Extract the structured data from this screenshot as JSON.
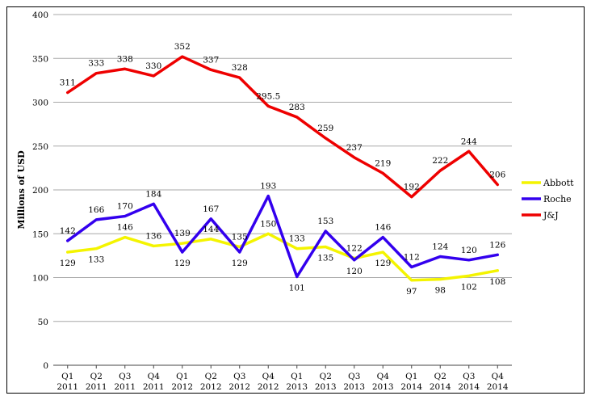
{
  "chart_data": {
    "type": "line",
    "title": "",
    "xlabel": "",
    "ylabel": "Millions of USD",
    "ylim": [
      0,
      400
    ],
    "yticks": [
      0,
      50,
      100,
      150,
      200,
      250,
      300,
      350,
      400
    ],
    "grid": true,
    "legend_position": "right",
    "categories": [
      [
        "Q1",
        "2011"
      ],
      [
        "Q2",
        "2011"
      ],
      [
        "Q3",
        "2011"
      ],
      [
        "Q4",
        "2011"
      ],
      [
        "Q1",
        "2012"
      ],
      [
        "Q2",
        "2012"
      ],
      [
        "Q3",
        "2012"
      ],
      [
        "Q4",
        "2012"
      ],
      [
        "Q1",
        "2013"
      ],
      [
        "Q2",
        "2013"
      ],
      [
        "Q3",
        "2013"
      ],
      [
        "Q4",
        "2013"
      ],
      [
        "Q1",
        "2014"
      ],
      [
        "Q2",
        "2014"
      ],
      [
        "Q3",
        "2014"
      ],
      [
        "Q4",
        "2014"
      ]
    ],
    "series": [
      {
        "name": "Abbott",
        "color": "#f4f400",
        "values": [
          129,
          133,
          146,
          136,
          139,
          144,
          135,
          150,
          133,
          135,
          122,
          129,
          97,
          98,
          102,
          108
        ],
        "labels": [
          "129",
          "133",
          "146",
          "136",
          "",
          "144",
          "",
          "150",
          "133",
          "135",
          "",
          "129",
          "97",
          "98",
          "102",
          "108"
        ],
        "label_pos": [
          "below",
          "below",
          "above",
          "above",
          "above",
          "above",
          "above",
          "above",
          "above",
          "below",
          "above",
          "below",
          "below",
          "below",
          "below",
          "below"
        ]
      },
      {
        "name": "Roche",
        "color": "#3300ee",
        "values": [
          142,
          166,
          170,
          184,
          129,
          167,
          129,
          193,
          101,
          153,
          120,
          146,
          112,
          124,
          120,
          126
        ],
        "labels": [
          "142",
          "166",
          "170",
          "184",
          "129",
          "167",
          "129",
          "193",
          "101",
          "153",
          "120",
          "146",
          "112",
          "124",
          "120",
          "126"
        ],
        "extra_labels": [
          {
            "index": 4,
            "text": "139",
            "pos": "above"
          },
          {
            "index": 6,
            "text": "135",
            "pos": "above"
          },
          {
            "index": 10,
            "text": "122",
            "pos": "above"
          }
        ],
        "label_pos": [
          "above",
          "above",
          "above",
          "above",
          "below",
          "above",
          "below",
          "above",
          "below",
          "above",
          "below",
          "above",
          "above",
          "above",
          "above",
          "above"
        ]
      },
      {
        "name": "J&J",
        "color": "#ee0000",
        "values": [
          311,
          333,
          338,
          330,
          352,
          337,
          328,
          295.5,
          283,
          259,
          237,
          219,
          192,
          222,
          244,
          206
        ],
        "labels": [
          "311",
          "333",
          "338",
          "330",
          "352",
          "337",
          "328",
          "295.5",
          "283",
          "259",
          "237",
          "219",
          "192",
          "222",
          "244",
          "206"
        ],
        "label_pos": [
          "above",
          "above",
          "above",
          "above",
          "above",
          "above",
          "above",
          "above",
          "above",
          "above",
          "above",
          "above",
          "above",
          "above",
          "above",
          "above"
        ]
      }
    ]
  }
}
